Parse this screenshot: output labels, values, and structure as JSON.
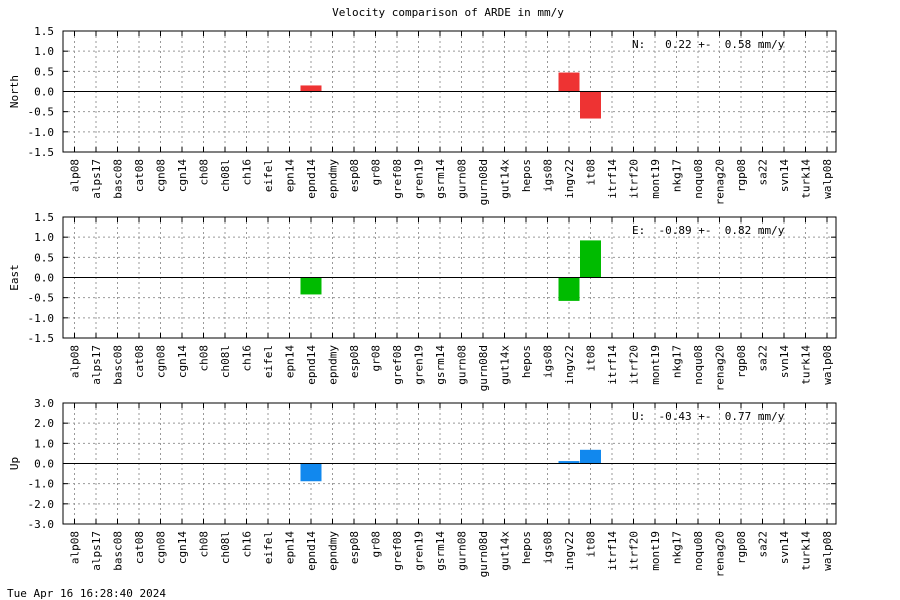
{
  "title": "Velocity comparison of ARDE in mm/y",
  "footer": "Tue Apr 16 16:28:40 2024",
  "chart_data": [
    {
      "type": "bar",
      "title": "Velocity comparison of ARDE in mm/y",
      "ylabel": "North",
      "ylim": [
        -1.5,
        1.5
      ],
      "yticks": [
        "1.5",
        "1.0",
        "0.5",
        "0.0",
        "-0.5",
        "-1.0",
        "-1.5"
      ],
      "annotation": "N:   0.22 +-  0.58 mm/y",
      "color": "#ee3333",
      "grid": true,
      "categories": [
        "alp08",
        "alps17",
        "basc08",
        "cat08",
        "cgn08",
        "cgn14",
        "ch08",
        "ch08l",
        "ch16",
        "eifel",
        "epn14",
        "epnd14",
        "epndmy",
        "esp08",
        "gr08",
        "gref08",
        "gren19",
        "gsrm14",
        "gurn08",
        "gurn08d",
        "gut14x",
        "hepos",
        "igs08",
        "ingv22",
        "it08",
        "itrf14",
        "itrf20",
        "mont19",
        "nkg17",
        "noqu08",
        "renag20",
        "rgp08",
        "sa22",
        "svn14",
        "turk14",
        "walp08"
      ],
      "values": [
        0,
        0,
        0,
        0,
        0,
        0,
        0,
        0,
        0,
        0,
        0,
        0.15,
        0,
        0,
        0,
        0,
        0,
        0,
        0,
        0,
        0,
        0,
        0,
        0.47,
        -0.67,
        0,
        0,
        0,
        0,
        0,
        0,
        0,
        0,
        0,
        0,
        0
      ]
    },
    {
      "type": "bar",
      "ylabel": "East",
      "ylim": [
        -1.5,
        1.5
      ],
      "yticks": [
        "1.5",
        "1.0",
        "0.5",
        "0.0",
        "-0.5",
        "-1.0",
        "-1.5"
      ],
      "annotation": "E:  -0.89 +-  0.82 mm/y",
      "color": "#00bb00",
      "grid": true,
      "categories": [
        "alp08",
        "alps17",
        "basc08",
        "cat08",
        "cgn08",
        "cgn14",
        "ch08",
        "ch08l",
        "ch16",
        "eifel",
        "epn14",
        "epnd14",
        "epndmy",
        "esp08",
        "gr08",
        "gref08",
        "gren19",
        "gsrm14",
        "gurn08",
        "gurn08d",
        "gut14x",
        "hepos",
        "igs08",
        "ingv22",
        "it08",
        "itrf14",
        "itrf20",
        "mont19",
        "nkg17",
        "noqu08",
        "renag20",
        "rgp08",
        "sa22",
        "svn14",
        "turk14",
        "walp08"
      ],
      "values": [
        0,
        0,
        0,
        0,
        0,
        0,
        0,
        0,
        0,
        0,
        0,
        -0.42,
        0,
        0,
        0,
        0,
        0,
        0,
        0,
        0,
        0,
        0,
        0,
        -0.58,
        0.92,
        0,
        0,
        0,
        0,
        0,
        0,
        0,
        0,
        0,
        0,
        0
      ]
    },
    {
      "type": "bar",
      "ylabel": "Up",
      "ylim": [
        -3.0,
        3.0
      ],
      "yticks": [
        "3.0",
        "2.0",
        "1.0",
        "0.0",
        "-1.0",
        "-2.0",
        "-3.0"
      ],
      "annotation": "U:  -0.43 +-  0.77 mm/y",
      "color": "#1188ee",
      "grid": true,
      "categories": [
        "alp08",
        "alps17",
        "basc08",
        "cat08",
        "cgn08",
        "cgn14",
        "ch08",
        "ch08l",
        "ch16",
        "eifel",
        "epn14",
        "epnd14",
        "epndmy",
        "esp08",
        "gr08",
        "gref08",
        "gren19",
        "gsrm14",
        "gurn08",
        "gurn08d",
        "gut14x",
        "hepos",
        "igs08",
        "ingv22",
        "it08",
        "itrf14",
        "itrf20",
        "mont19",
        "nkg17",
        "noqu08",
        "renag20",
        "rgp08",
        "sa22",
        "svn14",
        "turk14",
        "walp08"
      ],
      "values": [
        0,
        0,
        0,
        0,
        0,
        0,
        0,
        0,
        0,
        0,
        0,
        -0.88,
        0,
        0,
        0,
        0,
        0,
        0,
        0,
        0,
        0,
        0,
        0,
        0.12,
        0.68,
        0,
        0,
        0,
        0,
        0,
        0,
        0,
        0,
        0,
        0,
        0
      ]
    }
  ]
}
